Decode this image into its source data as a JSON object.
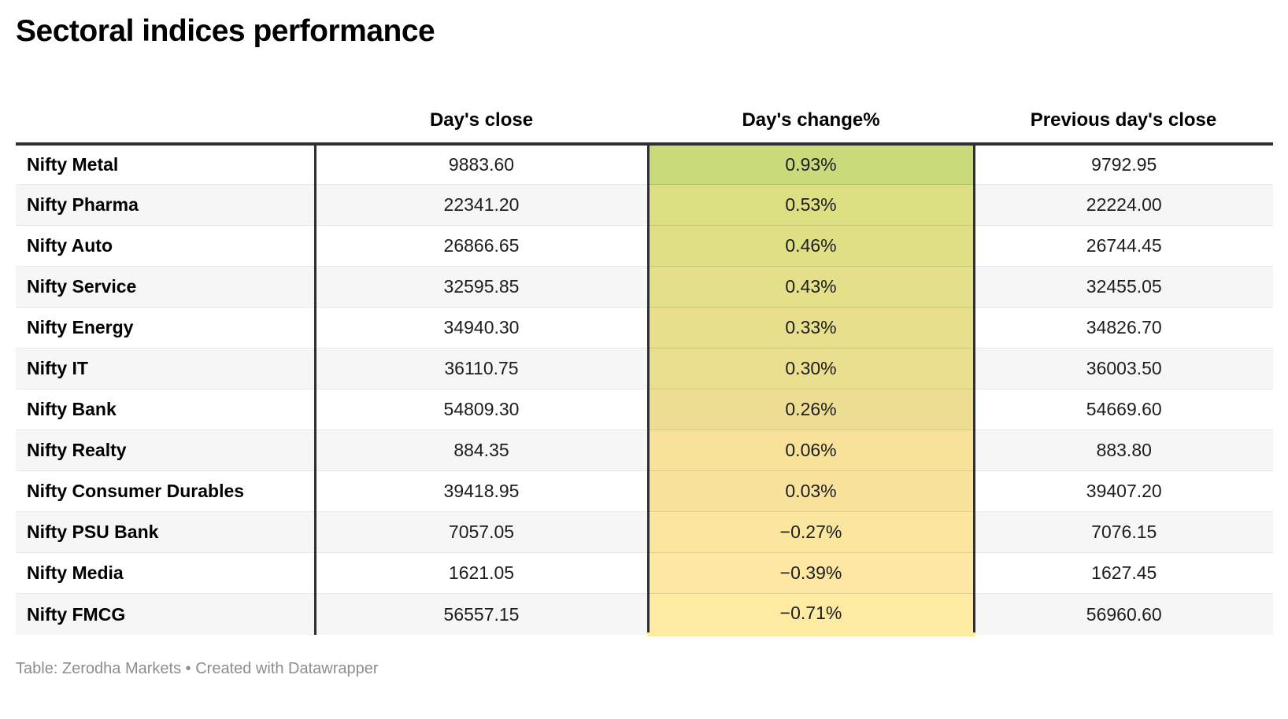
{
  "title": "Sectoral indices performance",
  "footer": "Table: Zerodha Markets • Created with Datawrapper",
  "chart_data": {
    "type": "table",
    "title": "Sectoral indices performance",
    "columns": [
      "",
      "Day's close",
      "Day's change%",
      "Previous day's close"
    ],
    "rows": [
      {
        "name": "Nifty Metal",
        "close": "9883.60",
        "change": "0.93%",
        "prev": "9792.95",
        "cell_color": "#c9da7b"
      },
      {
        "name": "Nifty Pharma",
        "close": "22341.20",
        "change": "0.53%",
        "prev": "22224.00",
        "cell_color": "#dce083"
      },
      {
        "name": "Nifty Auto",
        "close": "26866.65",
        "change": "0.46%",
        "prev": "26744.45",
        "cell_color": "#dfe086"
      },
      {
        "name": "Nifty Service",
        "close": "32595.85",
        "change": "0.43%",
        "prev": "32455.05",
        "cell_color": "#e3e089"
      },
      {
        "name": "Nifty Energy",
        "close": "34940.30",
        "change": "0.33%",
        "prev": "34826.70",
        "cell_color": "#e7df8c"
      },
      {
        "name": "Nifty IT",
        "close": "36110.75",
        "change": "0.30%",
        "prev": "36003.50",
        "cell_color": "#e9df8e"
      },
      {
        "name": "Nifty Bank",
        "close": "54809.30",
        "change": "0.26%",
        "prev": "54669.60",
        "cell_color": "#ecdf92"
      },
      {
        "name": "Nifty Realty",
        "close": "884.35",
        "change": "0.06%",
        "prev": "883.80",
        "cell_color": "#f8e29a"
      },
      {
        "name": "Nifty Consumer Durables",
        "close": "39418.95",
        "change": "0.03%",
        "prev": "39407.20",
        "cell_color": "#f9e39c"
      },
      {
        "name": "Nifty PSU Bank",
        "close": "7057.05",
        "change": "−0.27%",
        "prev": "7076.15",
        "cell_color": "#fbe6a0"
      },
      {
        "name": "Nifty Media",
        "close": "1621.05",
        "change": "−0.39%",
        "prev": "1627.45",
        "cell_color": "#fce8a2"
      },
      {
        "name": "Nifty FMCG",
        "close": "56557.15",
        "change": "−0.71%",
        "prev": "56960.60",
        "cell_color": "#fdeaa3"
      }
    ],
    "style": {
      "header_rule_color": "#2f2f2f",
      "vertical_rule_color": "#2f2f2f",
      "stripe_color": "#f6f6f6",
      "gradient_top_color": "#c9da7b",
      "gradient_bottom_color": "#fdeaa3"
    }
  }
}
